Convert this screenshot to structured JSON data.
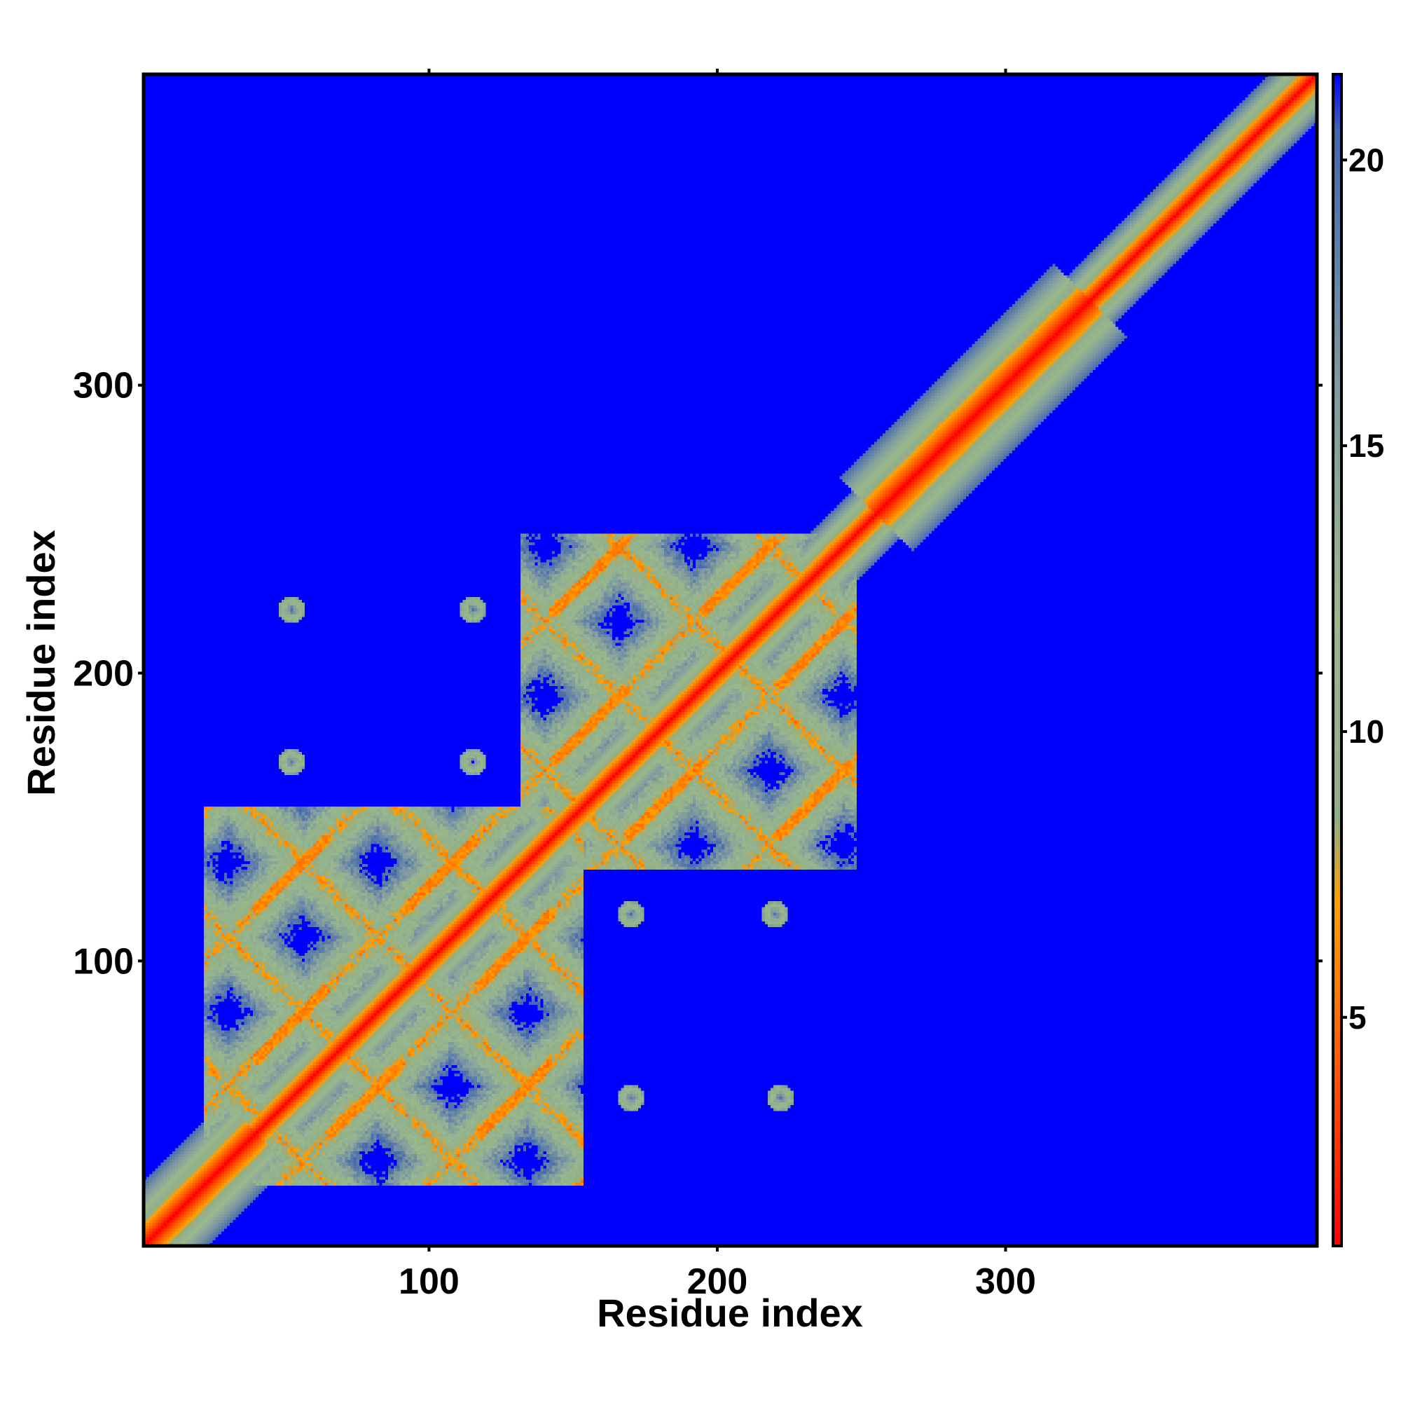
{
  "chart_data": {
    "type": "heatmap",
    "title": "",
    "xlabel": "Residue index",
    "ylabel": "Residue index",
    "xlim": [
      1,
      408
    ],
    "ylim": [
      1,
      408
    ],
    "xticks": [
      100,
      200,
      300
    ],
    "yticks": [
      100,
      200,
      300
    ],
    "colorbar": {
      "ticks": [
        5,
        10,
        15,
        20
      ],
      "range": [
        1,
        21.5
      ],
      "colors": {
        "low": "#ff0000",
        "mid_low": "#ff8800",
        "mid": "#ffaa00",
        "high": "#a8c090",
        "highest": "#4a6cb0",
        "background": "#0000ff"
      }
    },
    "colormap_stops": [
      {
        "value": 1,
        "color": "#ff0000"
      },
      {
        "value": 4,
        "color": "#ff5500"
      },
      {
        "value": 7,
        "color": "#ffa000"
      },
      {
        "value": 8.5,
        "color": "#8fae8a"
      },
      {
        "value": 12,
        "color": "#9ab88c"
      },
      {
        "value": 16,
        "color": "#7f9aa0"
      },
      {
        "value": 20.5,
        "color": "#4466b0"
      },
      {
        "value": 21.5,
        "color": "#0000ff"
      }
    ],
    "structure": {
      "diagonal": {
        "from": 1,
        "to": 408
      },
      "domains": [
        {
          "name": "",
          "start": 30,
          "end": 145
        },
        {
          "name": "",
          "start": 140,
          "end": 240
        }
      ],
      "off_diagonal_spots": [
        {
          "x": 52,
          "y": 222
        },
        {
          "x": 115,
          "y": 222
        },
        {
          "x": 52,
          "y": 169
        },
        {
          "x": 115,
          "y": 169
        },
        {
          "x": 170,
          "y": 116
        },
        {
          "x": 220,
          "y": 116
        },
        {
          "x": 170,
          "y": 52
        },
        {
          "x": 222,
          "y": 52
        }
      ]
    }
  }
}
